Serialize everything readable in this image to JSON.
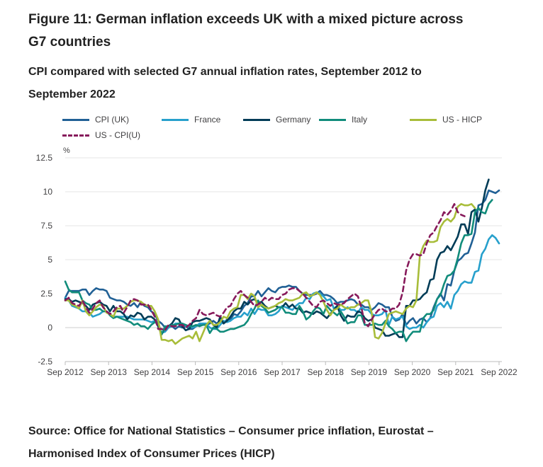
{
  "title": "Figure 11: German inflation exceeds UK with a mixed picture across G7 countries",
  "subtitle": "CPI compared with selected G7 annual inflation rates, September 2012 to September 2022",
  "source": "Source: Office for National Statistics – Consumer price inflation, Eurostat – Harmonised Index of Consumer Prices (HICP)",
  "chart_data": {
    "type": "line",
    "ylabel": "%",
    "ylim": [
      -2.5,
      12.5
    ],
    "yticks": [
      "12.5",
      "10",
      "7.5",
      "5",
      "2.5",
      "0",
      "-2.5"
    ],
    "xticks": [
      "Sep 2012",
      "Sep 2013",
      "Sep 2014",
      "Sep 2015",
      "Sep 2016",
      "Sep 2017",
      "Sep 2018",
      "Sep 2019",
      "Sep 2020",
      "Sep 2021",
      "Sep 2022"
    ],
    "grid": true,
    "legend_position": "top-left",
    "x_start": "Sep 2012",
    "x_frequency": "monthly",
    "series": [
      {
        "name": "CPI (UK)",
        "color": "#206095",
        "dash": "solid",
        "values": [
          2.2,
          2.7,
          2.7,
          2.7,
          2.7,
          2.8,
          2.8,
          2.4,
          2.7,
          2.9,
          2.8,
          2.8,
          2.7,
          2.2,
          2.1,
          2.0,
          2.0,
          1.9,
          1.7,
          1.6,
          1.8,
          1.5,
          1.9,
          1.6,
          1.5,
          1.2,
          1.0,
          0.5,
          0.3,
          0.0,
          0.0,
          0.1,
          -0.1,
          0.1,
          0.0,
          0.1,
          -0.1,
          -0.1,
          0.1,
          0.2,
          0.3,
          0.2,
          0.3,
          0.5,
          0.3,
          0.5,
          0.3,
          0.6,
          0.6,
          1.0,
          0.9,
          1.2,
          1.6,
          1.8,
          2.3,
          2.3,
          2.7,
          2.3,
          2.6,
          2.9,
          2.7,
          2.6,
          2.9,
          3.0,
          3.0,
          3.1,
          3.0,
          3.0,
          2.7,
          2.5,
          2.4,
          2.4,
          2.4,
          2.5,
          2.7,
          2.4,
          2.4,
          2.3,
          2.1,
          1.8,
          1.9,
          1.9,
          2.0,
          2.1,
          2.0,
          1.7,
          1.7,
          1.5,
          1.5,
          1.3,
          1.5,
          1.8,
          1.7,
          1.5,
          1.5,
          0.8,
          0.5,
          0.6,
          1.0,
          0.2,
          0.5,
          0.7,
          0.3,
          0.6,
          0.7,
          0.4,
          0.7,
          1.5,
          2.1,
          2.5,
          2.0,
          3.2,
          3.1,
          4.2,
          4.9,
          5.1,
          5.4,
          5.5,
          6.2,
          7.0,
          9.0,
          9.1,
          9.4,
          10.1,
          10.0,
          9.9,
          10.1
        ]
      },
      {
        "name": "France",
        "color": "#27a0cc",
        "dash": "solid",
        "values": [
          2.2,
          2.0,
          1.6,
          1.5,
          1.4,
          1.2,
          1.2,
          1.1,
          0.8,
          0.9,
          1.0,
          1.2,
          1.2,
          1.0,
          0.8,
          0.8,
          0.8,
          0.8,
          0.8,
          0.7,
          0.6,
          0.6,
          0.6,
          0.6,
          0.5,
          0.4,
          0.5,
          0.1,
          -0.4,
          -0.3,
          0.0,
          0.1,
          0.3,
          0.3,
          0.2,
          0.1,
          0.1,
          0.0,
          0.1,
          0.3,
          0.3,
          0.3,
          0.0,
          -0.1,
          -0.1,
          0.2,
          0.5,
          0.4,
          0.5,
          0.7,
          0.8,
          0.8,
          1.1,
          0.9,
          1.4,
          1.0,
          1.4,
          1.3,
          1.3,
          0.9,
          0.9,
          1.0,
          1.2,
          1.6,
          1.5,
          1.4,
          1.3,
          1.6,
          1.8,
          1.8,
          2.2,
          2.1,
          2.5,
          2.6,
          2.5,
          2.3,
          2.0,
          2.1,
          1.4,
          1.6,
          1.3,
          1.3,
          1.5,
          1.3,
          1.3,
          1.1,
          1.5,
          1.3,
          1.3,
          1.0,
          0.9,
          0.9,
          1.0,
          1.3,
          0.2,
          0.8,
          0.6,
          0.7,
          0.8,
          0.1,
          -0.1,
          0.0,
          0.0,
          0.2,
          0.0,
          0.4,
          0.7,
          0.8,
          1.6,
          1.8,
          1.5,
          1.9,
          1.4,
          2.4,
          2.7,
          3.2,
          3.4,
          3.3,
          3.3,
          4.1,
          4.2,
          5.4,
          5.8,
          6.5,
          6.8,
          6.6,
          6.2
        ]
      },
      {
        "name": "Germany",
        "color": "#003c57",
        "dash": "solid",
        "values": [
          2.1,
          2.1,
          1.9,
          2.0,
          1.9,
          1.8,
          1.6,
          1.3,
          1.7,
          1.8,
          1.9,
          1.7,
          1.6,
          1.2,
          1.6,
          1.2,
          1.2,
          1.0,
          0.6,
          0.9,
          0.8,
          1.1,
          1.0,
          0.6,
          0.8,
          0.8,
          0.6,
          0.1,
          -0.5,
          0.0,
          0.1,
          0.3,
          0.7,
          0.6,
          0.1,
          -0.2,
          -0.1,
          0.4,
          0.5,
          0.5,
          0.6,
          0.7,
          0.6,
          0.2,
          0.0,
          0.8,
          0.3,
          0.5,
          0.8,
          1.2,
          1.4,
          1.4,
          1.9,
          1.7,
          2.0,
          2.1,
          1.8,
          1.9,
          1.6,
          1.4,
          1.5,
          1.6,
          1.5,
          1.5,
          1.8,
          1.5,
          1.7,
          1.4,
          1.4,
          1.1,
          1.2,
          1.1,
          1.0,
          1.2,
          1.1,
          0.9,
          0.7,
          1.0,
          1.3,
          1.6,
          0.9,
          0.5,
          0.9,
          0.8,
          0.8,
          1.2,
          1.1,
          0.7,
          0.5,
          0.6,
          0.0,
          -0.1,
          -0.2,
          -0.6,
          -0.6,
          -0.5,
          -0.4,
          -0.7,
          -0.7,
          1.6,
          1.6,
          2.0,
          2.0,
          2.1,
          2.4,
          2.6,
          3.5,
          3.6,
          5.0,
          5.5,
          5.6,
          6.0,
          5.7,
          6.2,
          6.7,
          7.6,
          7.6,
          6.9,
          8.5,
          8.7,
          7.8,
          8.8,
          10.1,
          10.9
        ]
      },
      {
        "name": "Italy",
        "color": "#118c7b",
        "dash": "solid",
        "values": [
          3.4,
          2.8,
          2.6,
          2.6,
          2.6,
          2.0,
          1.8,
          1.7,
          1.3,
          1.3,
          1.4,
          1.2,
          1.2,
          0.9,
          0.7,
          0.8,
          0.7,
          0.6,
          0.5,
          0.4,
          0.2,
          0.3,
          0.1,
          0.1,
          -0.1,
          0.2,
          0.4,
          0.4,
          -0.5,
          0.1,
          0.1,
          0.2,
          0.2,
          0.3,
          0.3,
          0.2,
          0.1,
          0.1,
          0.2,
          0.1,
          0.2,
          0.2,
          -0.4,
          0.0,
          -0.1,
          -0.3,
          -0.3,
          -0.2,
          -0.1,
          -0.1,
          0.0,
          0.1,
          0.2,
          0.5,
          1.0,
          1.4,
          2.0,
          1.6,
          1.4,
          1.1,
          1.2,
          1.3,
          1.5,
          1.5,
          1.1,
          1.1,
          1.0,
          1.0,
          1.6,
          1.2,
          0.6,
          0.8,
          1.2,
          1.5,
          1.4,
          1.0,
          1.6,
          1.3,
          1.1,
          0.9,
          1.2,
          0.8,
          0.3,
          0.4,
          0.4,
          0.9,
          0.9,
          0.2,
          0.2,
          0.2,
          0.3,
          0.2,
          0.2,
          0.5,
          0.1,
          -0.1,
          -0.4,
          -0.3,
          -0.3,
          -1.0,
          -0.6,
          -0.3,
          -0.3,
          -0.3,
          0.7,
          1.0,
          1.0,
          1.3,
          2.1,
          2.4,
          3.2,
          3.8,
          3.9,
          4.2,
          5.1,
          6.2,
          6.8,
          6.8,
          6.9,
          8.5,
          8.8,
          8.5,
          8.4,
          9.1,
          9.4
        ]
      },
      {
        "name": "US - HICP",
        "color": "#a8bd3a",
        "dash": "solid",
        "values": [
          2.0,
          2.0,
          1.7,
          1.6,
          1.4,
          2.0,
          1.2,
          0.9,
          1.2,
          1.5,
          1.7,
          1.6,
          1.1,
          1.0,
          0.8,
          1.4,
          1.4,
          1.4,
          1.6,
          1.9,
          2.0,
          2.0,
          1.9,
          1.7,
          1.6,
          1.6,
          1.2,
          0.6,
          -0.9,
          -0.9,
          -1.0,
          -0.9,
          -1.2,
          -1.0,
          -0.8,
          -0.7,
          -0.6,
          -0.8,
          -0.3,
          -1.0,
          -0.4,
          0.2,
          0.5,
          0.2,
          0.2,
          0.4,
          0.8,
          0.7,
          1.2,
          1.4,
          1.5,
          2.4,
          2.4,
          2.1,
          2.5,
          2.3,
          1.5,
          1.7,
          1.5,
          1.4,
          1.5,
          1.6,
          1.8,
          1.9,
          2.1,
          2.0,
          2.0,
          2.1,
          2.2,
          2.5,
          2.6,
          2.3,
          2.4,
          2.6,
          2.4,
          1.9,
          1.3,
          0.9,
          1.3,
          1.4,
          1.7,
          1.5,
          1.4,
          1.5,
          1.5,
          1.7,
          1.8,
          2.0,
          2.0,
          1.1,
          -0.7,
          -0.8,
          -0.4,
          0.3,
          1.0,
          1.1,
          1.2,
          1.1,
          1.0,
          1.4,
          1.6,
          1.5,
          2.0,
          5.3,
          6.0,
          6.4,
          6.3,
          6.3,
          6.4,
          7.4,
          7.8,
          8.0,
          7.8,
          8.1,
          8.9,
          9.1,
          9.0,
          9.0,
          9.1,
          8.8
        ]
      },
      {
        "name": "US - CPI(U)",
        "color": "#871a5b",
        "dash": "dashed",
        "values": [
          2.0,
          2.2,
          1.8,
          1.7,
          1.6,
          2.0,
          1.5,
          1.1,
          1.4,
          1.8,
          2.0,
          1.5,
          1.2,
          1.0,
          1.2,
          1.5,
          1.6,
          1.1,
          1.5,
          2.0,
          2.1,
          2.0,
          1.7,
          1.7,
          1.7,
          1.3,
          0.8,
          -0.1,
          -0.1,
          -0.2,
          0.2,
          0.1,
          0.1,
          0.2,
          0.2,
          0.0,
          0.2,
          0.5,
          0.7,
          1.3,
          1.0,
          0.9,
          1.0,
          1.1,
          0.9,
          0.8,
          1.1,
          1.5,
          1.6,
          2.1,
          2.5,
          2.7,
          2.4,
          2.2,
          1.9,
          1.6,
          1.7,
          1.9,
          2.2,
          2.0,
          2.2,
          2.1,
          2.1,
          2.4,
          2.5,
          2.8,
          2.9,
          2.9,
          2.7,
          2.5,
          2.2,
          1.9,
          1.6,
          1.5,
          1.9,
          2.0,
          1.8,
          1.6,
          1.8,
          1.7,
          1.7,
          1.8,
          2.1,
          2.3,
          2.5,
          2.3,
          1.5,
          0.3,
          0.1,
          0.6,
          1.0,
          1.3,
          1.4,
          1.2,
          1.2,
          1.4,
          1.4,
          1.7,
          2.6,
          4.2,
          5.0,
          5.4,
          5.4,
          5.3,
          5.4,
          6.2,
          6.8,
          7.0,
          7.5,
          7.9,
          8.5,
          8.3,
          8.6,
          9.1,
          8.5,
          8.3,
          8.2
        ]
      }
    ]
  }
}
